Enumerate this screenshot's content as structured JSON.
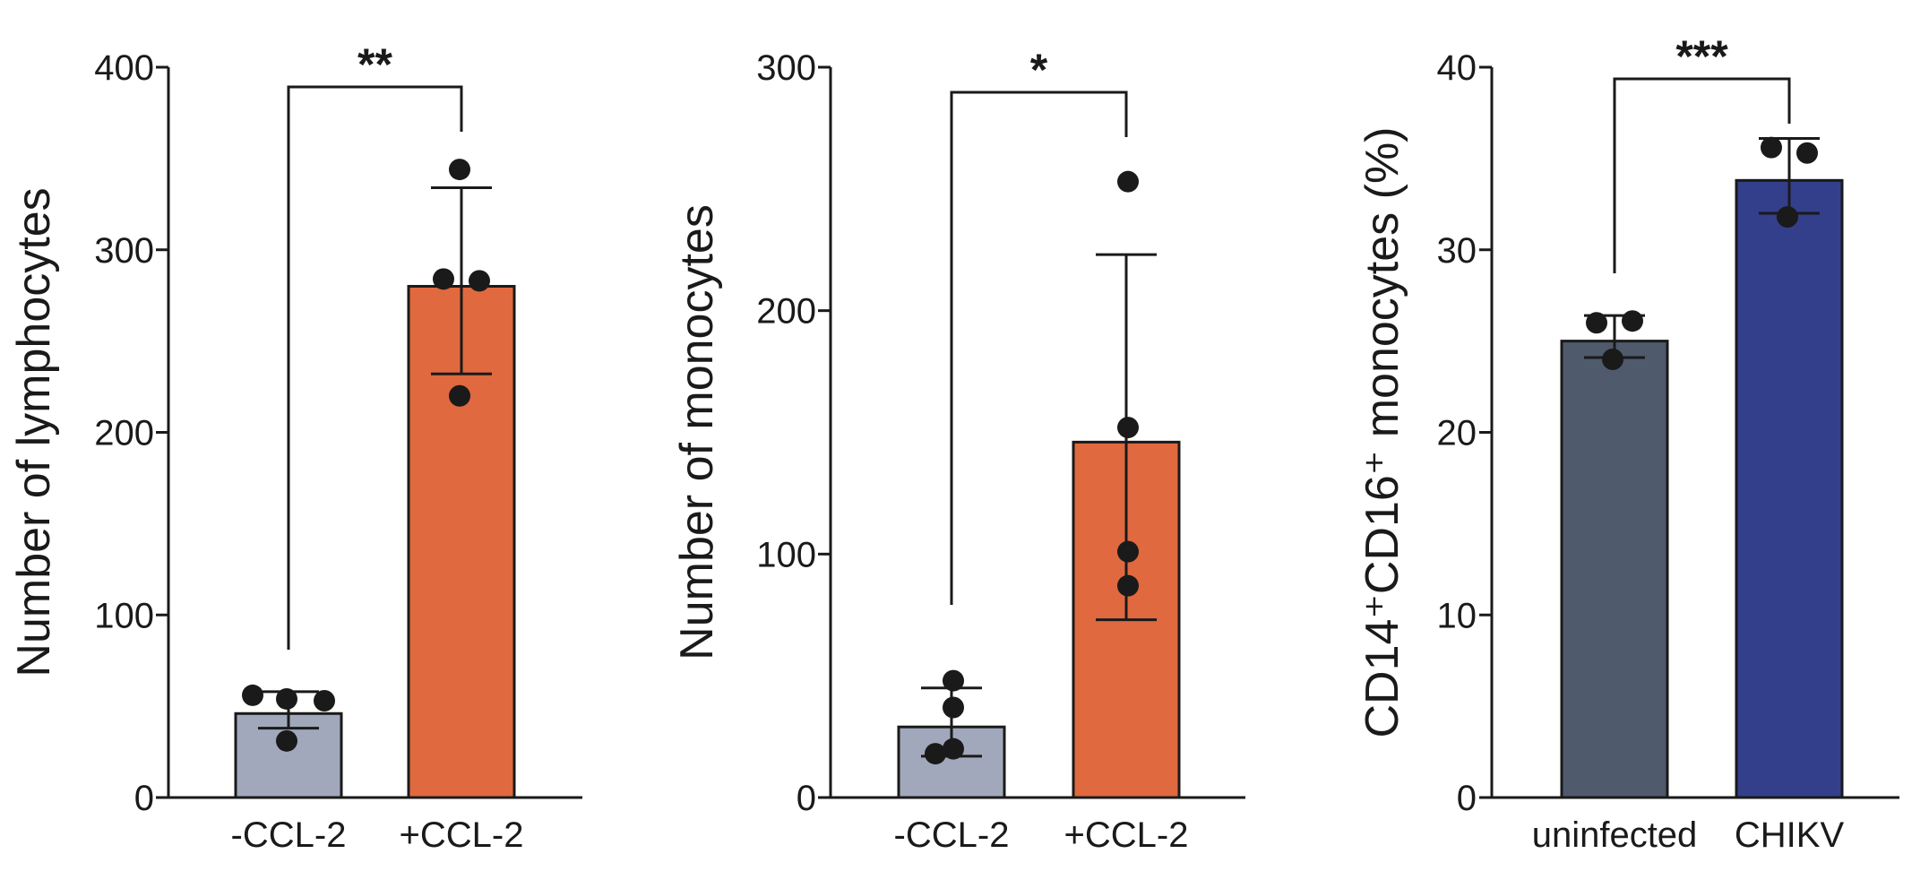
{
  "chart_data": [
    {
      "type": "bar",
      "categories": [
        "-CCL-2",
        "+CCL-2"
      ],
      "ylabel": "Number of lymphocytes",
      "ylim": [
        0,
        400
      ],
      "yticks": [
        "0",
        "100",
        "200",
        "300",
        "400"
      ],
      "bar_colors": [
        "#a2a8bb",
        "#e0693f"
      ],
      "means": [
        46,
        280
      ],
      "error_low": [
        38,
        232
      ],
      "error_high": [
        58,
        334
      ],
      "points": [
        [
          56,
          53,
          54,
          31
        ],
        [
          344,
          284,
          283,
          220
        ]
      ],
      "significance": "**"
    },
    {
      "type": "bar",
      "categories": [
        "-CCL-2",
        "+CCL-2"
      ],
      "ylabel": "Number of monocytes",
      "ylim": [
        0,
        300
      ],
      "yticks": [
        "0",
        "100",
        "200",
        "300"
      ],
      "bar_colors": [
        "#a2a8bb",
        "#e0693f"
      ],
      "means": [
        29,
        146
      ],
      "error_low": [
        17,
        73
      ],
      "error_high": [
        45,
        223
      ],
      "points": [
        [
          48,
          37,
          20,
          18
        ],
        [
          253,
          152,
          101,
          87
        ]
      ],
      "significance": "*"
    },
    {
      "type": "bar",
      "categories": [
        "uninfected",
        "CHIKV"
      ],
      "ylabel": "CD14⁺CD16⁺ monocytes (%)",
      "ylim": [
        0,
        40
      ],
      "yticks": [
        "0",
        "10",
        "20",
        "30",
        "40"
      ],
      "bar_colors": [
        "#4f5a6c",
        "#343f8b"
      ],
      "means": [
        25,
        33.8
      ],
      "error_low": [
        24.1,
        32.0
      ],
      "error_high": [
        26.4,
        36.1
      ],
      "points": [
        [
          26.0,
          26.1,
          24.0
        ],
        [
          35.6,
          35.3,
          31.8
        ]
      ],
      "significance": "***"
    }
  ]
}
